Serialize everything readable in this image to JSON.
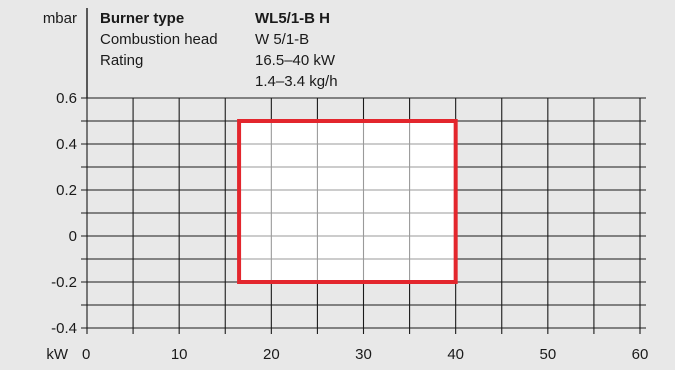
{
  "header": {
    "y_unit": "mbar",
    "x_unit": "kW",
    "rows": [
      {
        "label": "Burner type",
        "value": "WL5/1-B H"
      },
      {
        "label": "Combustion head",
        "value": "W 5/1-B"
      },
      {
        "label": "Rating",
        "value": "16.5–40 kW"
      },
      {
        "label": "",
        "value": "1.4–3.4 kg/h"
      }
    ]
  },
  "colors": {
    "background": "#e8e8e8",
    "grid_major": "#1a1a1a",
    "grid_minor": "#9a9a9a",
    "region_fill": "#ffffff",
    "region_stroke": "#e3262d"
  },
  "chart_data": {
    "type": "area",
    "title": "",
    "xlabel": "kW",
    "ylabel": "mbar",
    "xlim": [
      0,
      60
    ],
    "ylim": [
      -0.4,
      0.6
    ],
    "x_ticks": [
      0,
      10,
      20,
      30,
      40,
      50,
      60
    ],
    "x_tick_labels": [
      "0",
      "10",
      "20",
      "30",
      "40",
      "50",
      "60"
    ],
    "y_ticks": [
      -0.4,
      -0.2,
      0,
      0.2,
      0.4,
      0.6
    ],
    "y_tick_labels": [
      "-0.4",
      "-0.2",
      "0",
      "0.2",
      "0.4",
      "0.6"
    ],
    "grid": true,
    "grid_x_step": 5,
    "grid_y_step": 0.1,
    "working_field": {
      "x_min": 16.5,
      "x_max": 40,
      "y_min": -0.2,
      "y_max": 0.5
    }
  }
}
